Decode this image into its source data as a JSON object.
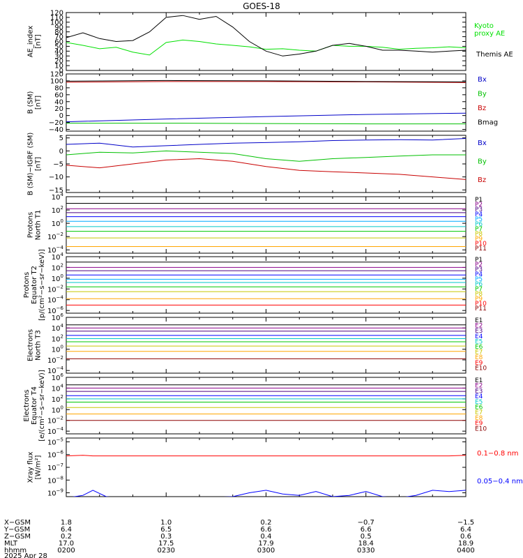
{
  "title": "GOES-18",
  "chart_data": [
    {
      "type": "line",
      "id": "ae",
      "ylabel": [
        "AE_index",
        "[nT]"
      ],
      "ylim": [
        0,
        120
      ],
      "yticks": [
        "0",
        "10",
        "20",
        "30",
        "40",
        "50",
        "60",
        "70",
        "80",
        "90",
        "100",
        "110",
        "120"
      ],
      "ytick_values": [
        0,
        10,
        20,
        30,
        40,
        50,
        60,
        70,
        80,
        90,
        100,
        110,
        120
      ],
      "x": [
        0,
        5,
        10,
        15,
        20,
        25,
        30,
        35,
        40,
        45,
        50,
        55,
        60,
        65,
        70,
        75,
        80,
        85,
        90,
        95,
        100,
        105,
        110,
        115,
        120
      ],
      "series": [
        {
          "name": "Kyoto proxy AE",
          "label": [
            "Kyoto",
            "proxy AE"
          ],
          "color": "#00e000",
          "values": [
            58,
            52,
            45,
            48,
            38,
            32,
            58,
            63,
            60,
            55,
            52,
            49,
            44,
            45,
            42,
            40,
            52,
            50,
            50,
            48,
            44,
            46,
            47,
            49,
            47
          ]
        },
        {
          "name": "Themis AE",
          "label": [
            "Themis AE"
          ],
          "color": "#000000",
          "values": [
            68,
            78,
            66,
            60,
            62,
            80,
            110,
            114,
            106,
            112,
            90,
            60,
            40,
            30,
            34,
            40,
            52,
            56,
            50,
            42,
            42,
            40,
            38,
            40,
            42
          ]
        }
      ]
    },
    {
      "type": "line",
      "id": "bsm",
      "ylabel": [
        "B (SM)",
        "[nT]"
      ],
      "ylim": [
        -45,
        120
      ],
      "yticks": [
        "120",
        "100",
        "80",
        "60",
        "40",
        "20",
        "0",
        "−20",
        "−40"
      ],
      "ytick_values": [
        120,
        100,
        80,
        60,
        40,
        20,
        0,
        -20,
        -40
      ],
      "x": [
        0,
        30,
        60,
        90,
        120
      ],
      "series": [
        {
          "name": "Bx",
          "label": [
            "Bx"
          ],
          "color": "#0000c8",
          "values": [
            -18,
            -10,
            -3,
            3,
            7
          ]
        },
        {
          "name": "By",
          "label": [
            "By"
          ],
          "color": "#00c000",
          "values": [
            -22,
            -22,
            -23,
            -24,
            -24
          ]
        },
        {
          "name": "Bz",
          "label": [
            "Bz"
          ],
          "color": "#c80000",
          "values": [
            96,
            98,
            98,
            97,
            95
          ]
        },
        {
          "name": "Bmag",
          "label": [
            "Bmag"
          ],
          "color": "#000000",
          "values": [
            99,
            101,
            100,
            98,
            97
          ]
        }
      ]
    },
    {
      "type": "line",
      "id": "bigrf",
      "ylabel": [
        "B (SM)−IGRF (SM)",
        "[nT]"
      ],
      "ylim": [
        -16,
        6
      ],
      "yticks": [
        "5",
        "0",
        "−5",
        "−10",
        "−15"
      ],
      "ytick_values": [
        5,
        0,
        -5,
        -10,
        -15
      ],
      "x": [
        0,
        10,
        20,
        30,
        40,
        50,
        60,
        70,
        80,
        90,
        100,
        110,
        120
      ],
      "series": [
        {
          "name": "Bx",
          "label": [
            "Bx"
          ],
          "color": "#0000c8",
          "values": [
            2.5,
            3,
            1.5,
            2,
            2.5,
            3,
            3.2,
            3.5,
            4,
            4.2,
            4.3,
            4.2,
            4.8
          ]
        },
        {
          "name": "By",
          "label": [
            "By"
          ],
          "color": "#00c000",
          "values": [
            -1.5,
            -0.5,
            -0.8,
            0,
            -0.5,
            -1,
            -3,
            -4,
            -3,
            -2.5,
            -2,
            -1.5,
            -1.5
          ]
        },
        {
          "name": "Bz",
          "label": [
            "Bz"
          ],
          "color": "#c80000",
          "values": [
            -5.5,
            -6.5,
            -5,
            -3.5,
            -3,
            -4,
            -6,
            -7.5,
            -8,
            -8.5,
            -9,
            -10,
            -11
          ]
        }
      ]
    },
    {
      "type": "line",
      "id": "pn",
      "log": true,
      "ylabel": [
        "Protons",
        "North T1"
      ],
      "ylim_exp": [
        -4.5,
        4
      ],
      "ytick_exps": [
        -4,
        -2,
        0,
        2,
        4
      ],
      "x": [
        0,
        120
      ],
      "series": [
        {
          "name": "P1",
          "color": "#000000",
          "values": [
            3.0,
            3.0
          ]
        },
        {
          "name": "P2",
          "color": "#8a008a",
          "values": [
            2.2,
            2.2
          ]
        },
        {
          "name": "P3",
          "color": "#4b0082",
          "values": [
            1.6,
            1.6
          ]
        },
        {
          "name": "P4",
          "color": "#0000ff",
          "values": [
            1.0,
            1.0
          ]
        },
        {
          "name": "P5",
          "color": "#00aaff",
          "values": [
            0.3,
            0.3
          ]
        },
        {
          "name": "P6",
          "color": "#00c8c8",
          "values": [
            -0.5,
            -0.5
          ]
        },
        {
          "name": "P7",
          "color": "#00c800",
          "values": [
            -1.2,
            -1.2
          ]
        },
        {
          "name": "P8",
          "color": "#c8c800",
          "values": [
            -2.2,
            -2.2
          ]
        },
        {
          "name": "P9",
          "color": "#ffa500",
          "values": [
            -3.5,
            -3.5
          ]
        },
        {
          "name": "P10",
          "color": "#ff0000",
          "values": [
            null,
            null
          ]
        },
        {
          "name": "P11",
          "color": "#8b0000",
          "values": [
            null,
            null
          ]
        }
      ]
    },
    {
      "type": "line",
      "id": "pe",
      "log": true,
      "ylabel": [
        "Protons",
        "Equator T2",
        "[p/(cm²−s−sr−keV)]"
      ],
      "ylim_exp": [
        -6.5,
        4
      ],
      "ytick_exps": [
        -6,
        -4,
        -2,
        0,
        2,
        4
      ],
      "x": [
        0,
        120
      ],
      "series": [
        {
          "name": "P1",
          "color": "#000000",
          "values": [
            3.0,
            3.0
          ]
        },
        {
          "name": "P2",
          "color": "#8a008a",
          "values": [
            2.0,
            2.0
          ]
        },
        {
          "name": "P3",
          "color": "#4b0082",
          "values": [
            1.4,
            1.4
          ]
        },
        {
          "name": "P4",
          "color": "#0000ff",
          "values": [
            0.6,
            0.6
          ]
        },
        {
          "name": "P5",
          "color": "#00aaff",
          "values": [
            -0.2,
            -0.2
          ]
        },
        {
          "name": "P6",
          "color": "#00c8c8",
          "values": [
            -0.8,
            -0.8
          ]
        },
        {
          "name": "P7",
          "color": "#00c800",
          "values": [
            -1.6,
            -1.6
          ]
        },
        {
          "name": "P8",
          "color": "#c8c800",
          "values": [
            -2.5,
            -2.5
          ]
        },
        {
          "name": "P9",
          "color": "#ffa500",
          "values": [
            -3.8,
            -3.8
          ]
        },
        {
          "name": "P10",
          "color": "#ff0000",
          "values": [
            -5.0,
            -5.0
          ]
        },
        {
          "name": "P11",
          "color": "#8b0000",
          "values": [
            null,
            null
          ]
        }
      ]
    },
    {
      "type": "line",
      "id": "en",
      "log": true,
      "ylabel": [
        "Electrons",
        "North T3"
      ],
      "ylim_exp": [
        -4.5,
        6
      ],
      "ytick_exps": [
        -4,
        -2,
        0,
        2,
        4,
        6
      ],
      "x": [
        0,
        120
      ],
      "series": [
        {
          "name": "E1",
          "color": "#000000",
          "values": [
            4.6,
            4.6
          ]
        },
        {
          "name": "E2",
          "color": "#8a008a",
          "values": [
            4.0,
            4.0
          ]
        },
        {
          "name": "E3",
          "color": "#4b0082",
          "values": [
            3.4,
            3.4
          ]
        },
        {
          "name": "E4",
          "color": "#0000ff",
          "values": [
            2.6,
            2.6
          ]
        },
        {
          "name": "E5",
          "color": "#00c8c8",
          "values": [
            2.0,
            2.0
          ]
        },
        {
          "name": "E6",
          "color": "#00c800",
          "values": [
            1.4,
            1.4
          ]
        },
        {
          "name": "E7",
          "color": "#c8c800",
          "values": [
            0.6,
            0.6
          ]
        },
        {
          "name": "E8",
          "color": "#ffa500",
          "values": [
            -0.4,
            -0.4
          ]
        },
        {
          "name": "E9",
          "color": "#ff0000",
          "values": [
            null,
            null
          ]
        },
        {
          "name": "E10",
          "color": "#8b0000",
          "values": [
            -1.8,
            -1.8
          ]
        }
      ]
    },
    {
      "type": "line",
      "id": "ee",
      "log": true,
      "ylabel": [
        "Electrons",
        "Equator T4",
        "[e/(cm²−s−sr−keV)]"
      ],
      "ylim_exp": [
        -4.5,
        6
      ],
      "ytick_exps": [
        -4,
        -2,
        0,
        2,
        4,
        6
      ],
      "x": [
        0,
        120
      ],
      "series": [
        {
          "name": "E1",
          "color": "#000000",
          "values": [
            4.6,
            4.6
          ]
        },
        {
          "name": "E2",
          "color": "#8a008a",
          "values": [
            4.0,
            4.0
          ]
        },
        {
          "name": "E3",
          "color": "#4b0082",
          "values": [
            3.4,
            3.4
          ]
        },
        {
          "name": "E4",
          "color": "#0000ff",
          "values": [
            2.6,
            2.6
          ]
        },
        {
          "name": "E5",
          "color": "#00c8c8",
          "values": [
            2.0,
            2.0
          ]
        },
        {
          "name": "E6",
          "color": "#00c800",
          "values": [
            1.4,
            1.4
          ]
        },
        {
          "name": "E7",
          "color": "#c8c800",
          "values": [
            0.4,
            0.4
          ]
        },
        {
          "name": "E8",
          "color": "#ffa500",
          "values": [
            -0.8,
            -0.8
          ]
        },
        {
          "name": "E9",
          "color": "#ff0000",
          "values": [
            null,
            null
          ]
        },
        {
          "name": "E10",
          "color": "#8b0000",
          "values": [
            -2.0,
            -2.0
          ]
        }
      ]
    },
    {
      "type": "line",
      "id": "xray",
      "log": true,
      "ylabel": [
        "Xray flux",
        "[W/m²]"
      ],
      "ylim_exp": [
        -9.3,
        -4.7
      ],
      "ytick_exps": [
        -9,
        -8,
        -7,
        -6,
        -5
      ],
      "x": [
        0,
        5,
        8,
        12,
        16,
        20,
        30,
        40,
        50,
        55,
        60,
        65,
        70,
        75,
        80,
        85,
        90,
        95,
        100,
        105,
        110,
        115,
        120
      ],
      "series": [
        {
          "name": "0.1−0.8 nm",
          "color": "#ff0000",
          "values": [
            -6.1,
            -6.05,
            -6.1,
            -6.1,
            -6.1,
            -6.1,
            -6.1,
            -6.1,
            -6.1,
            -6.1,
            -6.1,
            -6.1,
            -6.1,
            -6.1,
            -6.1,
            -6.1,
            -6.1,
            -6.1,
            -6.1,
            -6.1,
            -6.1,
            -6.1,
            -6.05
          ]
        },
        {
          "name": "0.05−0.4 nm",
          "color": "#0000ff",
          "values": [
            -9.4,
            -9.2,
            -8.8,
            -9.3,
            -9.4,
            -9.4,
            -9.4,
            -9.4,
            -9.3,
            -9.0,
            -8.8,
            -9.1,
            -9.2,
            -8.9,
            -9.3,
            -9.2,
            -8.9,
            -9.3,
            -9.4,
            -9.2,
            -8.8,
            -8.9,
            -8.8
          ]
        }
      ]
    }
  ],
  "xaxis": {
    "row_labels": [
      "X−GSM",
      "Y−GSM",
      "Z−GSM",
      "MLT",
      "hhmm",
      "2025 Apr 28"
    ],
    "ticks": [
      {
        "pos": 0,
        "vals": [
          "1.8",
          "6.4",
          "0.2",
          "17.0",
          "0200"
        ]
      },
      {
        "pos": 30,
        "vals": [
          "1.0",
          "6.5",
          "0.3",
          "17.5",
          "0230"
        ]
      },
      {
        "pos": 60,
        "vals": [
          "0.2",
          "6.6",
          "0.4",
          "17.9",
          "0300"
        ]
      },
      {
        "pos": 90,
        "vals": [
          "−0.7",
          "6.6",
          "0.5",
          "18.4",
          "0330"
        ]
      },
      {
        "pos": 120,
        "vals": [
          "−1.5",
          "6.4",
          "0.6",
          "18.9",
          "0400"
        ]
      }
    ]
  }
}
